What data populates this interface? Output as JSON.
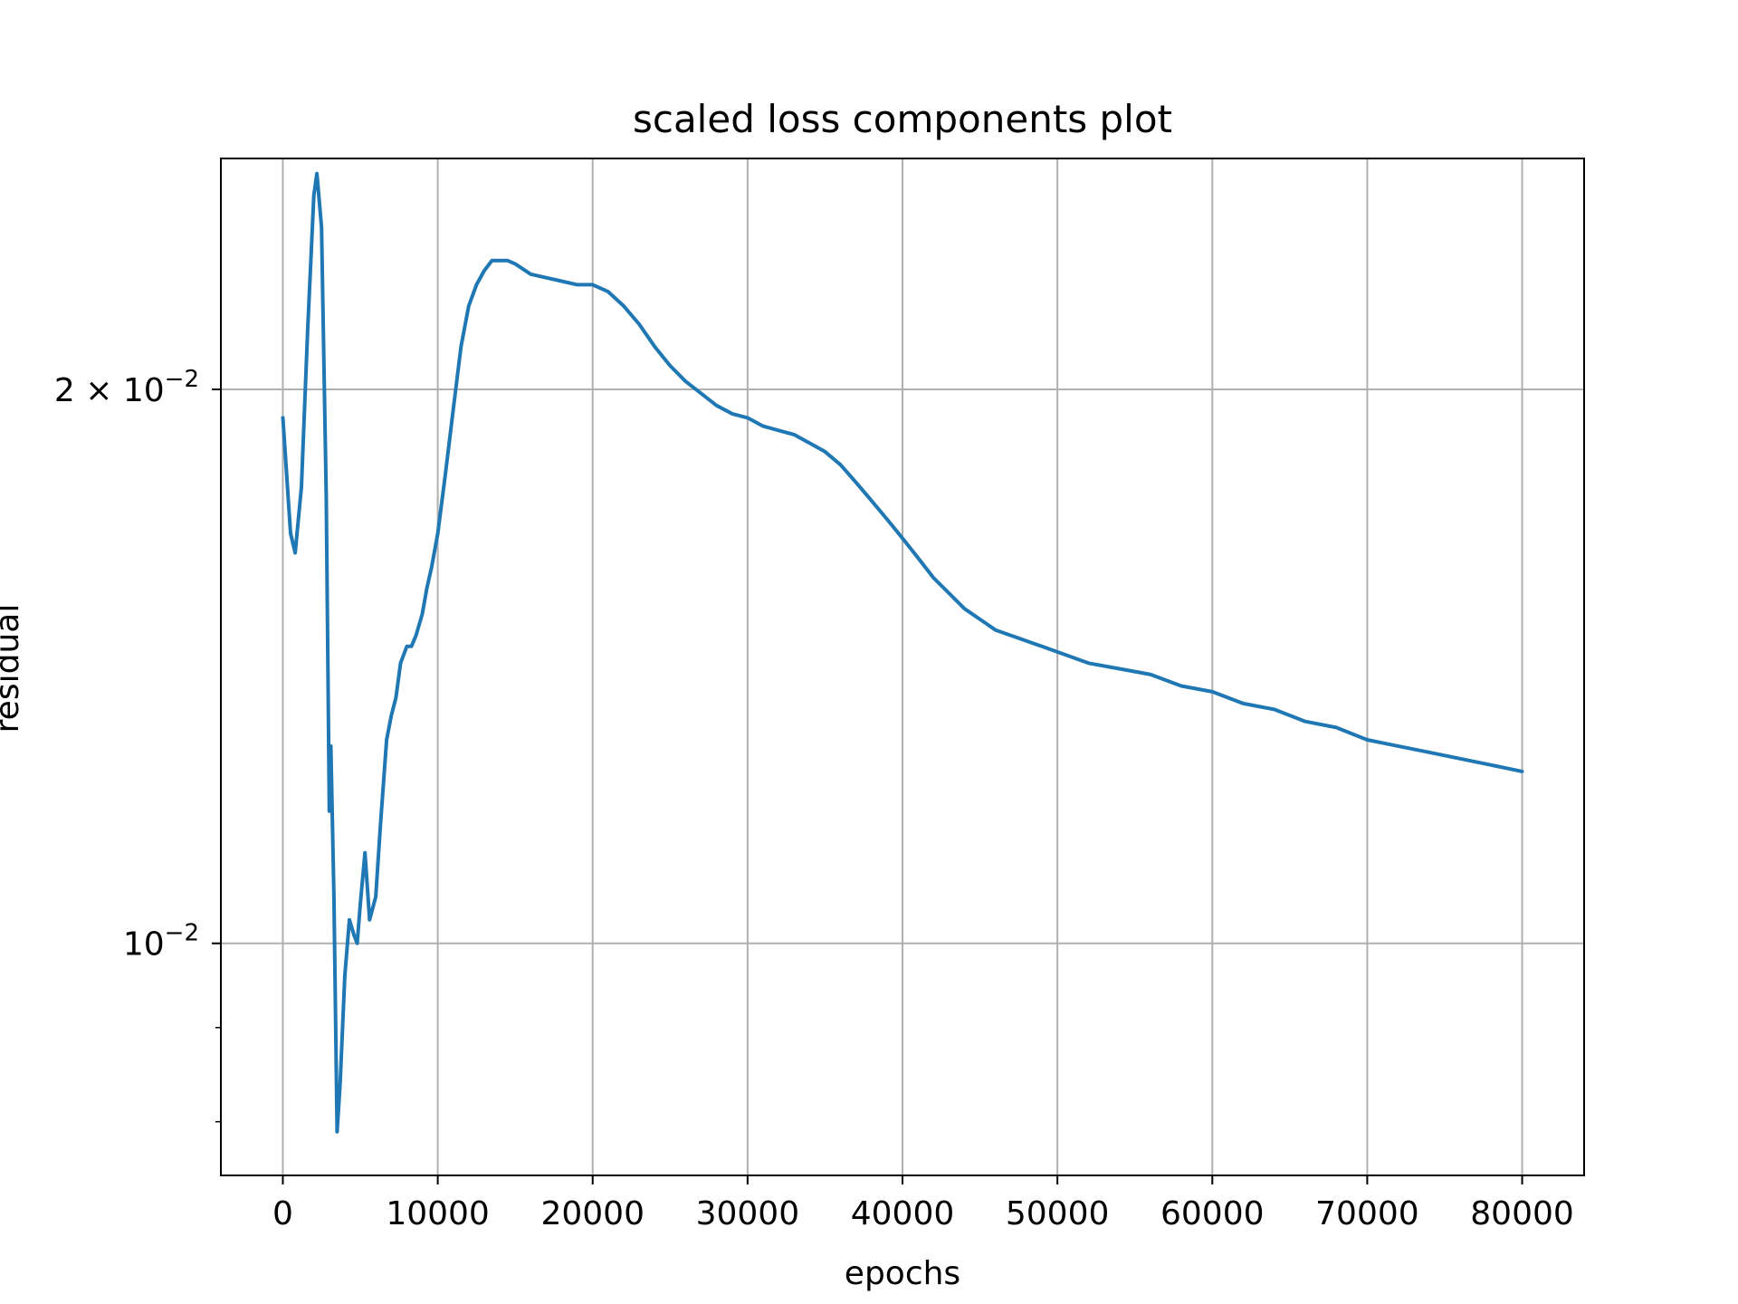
{
  "chart_data": {
    "type": "line",
    "title": "scaled loss components plot",
    "xlabel": "epochs",
    "ylabel": "residual",
    "xscale": "linear",
    "yscale": "log",
    "xlim": [
      -4000,
      84000
    ],
    "ylim": [
      0.00748,
      0.0267
    ],
    "grid": true,
    "legend": "none",
    "xticks": [
      {
        "value": 0,
        "label": "0"
      },
      {
        "value": 10000,
        "label": "10000"
      },
      {
        "value": 20000,
        "label": "20000"
      },
      {
        "value": 30000,
        "label": "30000"
      },
      {
        "value": 40000,
        "label": "40000"
      },
      {
        "value": 50000,
        "label": "50000"
      },
      {
        "value": 60000,
        "label": "60000"
      },
      {
        "value": 70000,
        "label": "70000"
      },
      {
        "value": 80000,
        "label": "80000"
      }
    ],
    "yticks_major": [
      {
        "value": 0.01,
        "base": "10",
        "exp": "−2"
      },
      {
        "value": 0.02,
        "base": "2 × 10",
        "exp": "−2"
      }
    ],
    "yticks_minor": [
      0.008,
      0.009
    ],
    "colors": {
      "series": "#1f77b4",
      "grid": "#b0b0b0",
      "axes": "#000000"
    },
    "series": [
      {
        "x": [
          0,
          500,
          800,
          1200,
          1600,
          2000,
          2200,
          2500,
          2800,
          3000,
          3100,
          3300,
          3500,
          3700,
          4000,
          4300,
          4600,
          4800,
          5000,
          5300,
          5600,
          6000,
          6300,
          6700,
          7000,
          7300,
          7600,
          8000,
          8300,
          8600,
          9000,
          9300,
          9600,
          10000,
          10500,
          11000,
          11500,
          12000,
          12500,
          13000,
          13500,
          14000,
          14500,
          15000,
          16000,
          17000,
          18000,
          19000,
          20000,
          21000,
          22000,
          23000,
          24000,
          25000,
          26000,
          27000,
          28000,
          29000,
          30000,
          31000,
          32000,
          33000,
          34000,
          35000,
          36000,
          37000,
          38000,
          39000,
          40000,
          41000,
          42000,
          43000,
          44000,
          45000,
          46000,
          47000,
          48000,
          49000,
          50000,
          52000,
          54000,
          56000,
          58000,
          60000,
          62000,
          64000,
          66000,
          68000,
          70000,
          72000,
          74000,
          76000,
          78000,
          80000
        ],
        "y": [
          0.0193,
          0.0167,
          0.0163,
          0.0177,
          0.0215,
          0.0255,
          0.0262,
          0.0245,
          0.0175,
          0.0118,
          0.0128,
          0.0106,
          0.0079,
          0.0084,
          0.0096,
          0.0103,
          0.0101,
          0.01,
          0.0105,
          0.0112,
          0.0103,
          0.0106,
          0.0116,
          0.0129,
          0.0133,
          0.0136,
          0.0142,
          0.0145,
          0.0145,
          0.0147,
          0.0151,
          0.0156,
          0.016,
          0.0167,
          0.018,
          0.0195,
          0.0211,
          0.0222,
          0.0228,
          0.0232,
          0.0235,
          0.0235,
          0.0235,
          0.0234,
          0.0231,
          0.023,
          0.0229,
          0.0228,
          0.0228,
          0.0226,
          0.0222,
          0.0217,
          0.0211,
          0.0206,
          0.0202,
          0.0199,
          0.0196,
          0.0194,
          0.0193,
          0.0191,
          0.019,
          0.0189,
          0.0187,
          0.0185,
          0.0182,
          0.0178,
          0.0174,
          0.017,
          0.0166,
          0.0162,
          0.0158,
          0.0155,
          0.0152,
          0.015,
          0.0148,
          0.0147,
          0.0146,
          0.0145,
          0.0144,
          0.0142,
          0.0141,
          0.014,
          0.0138,
          0.0137,
          0.0135,
          0.0134,
          0.0132,
          0.0131,
          0.0129,
          0.0128,
          0.0127,
          0.0126,
          0.0125,
          0.0124
        ]
      }
    ]
  }
}
